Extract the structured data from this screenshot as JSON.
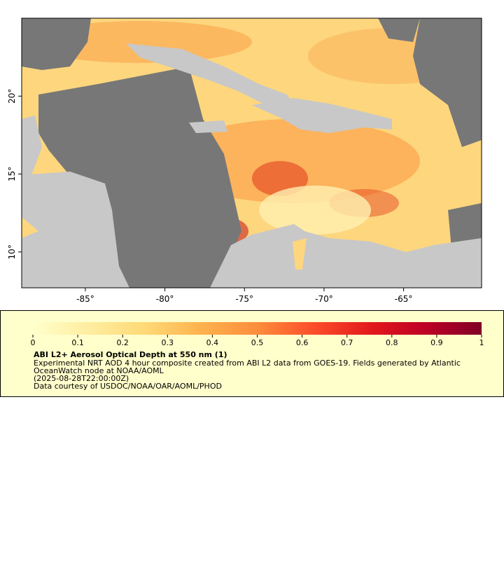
{
  "map": {
    "xlim": [
      -89,
      -60.1
    ],
    "ylim": [
      7.7,
      25
    ],
    "xticks": [
      {
        "value": -85,
        "label": "-85°"
      },
      {
        "value": -80,
        "label": "-80°"
      },
      {
        "value": -75,
        "label": "-75°"
      },
      {
        "value": -70,
        "label": "-70°"
      },
      {
        "value": -65,
        "label": "-65°"
      }
    ],
    "yticks": [
      {
        "value": 10,
        "label": "10°"
      },
      {
        "value": 15,
        "label": "15°"
      },
      {
        "value": 20,
        "label": "20°"
      }
    ]
  },
  "colorbar": {
    "range": [
      0,
      1
    ],
    "ticks": [
      0,
      0.1,
      0.2,
      0.3,
      0.4,
      0.5,
      0.6,
      0.7,
      0.8,
      0.9,
      1
    ],
    "colors": [
      "#ffffcc",
      "#ffeda0",
      "#fed976",
      "#feb24c",
      "#fd8d3c",
      "#fc4e2a",
      "#e31a1c",
      "#bd0026",
      "#800026"
    ]
  },
  "legend": {
    "title": "ABI L2+ Aerosol Optical Depth at 550 nm (1)",
    "lines": [
      "Experimental NRT AOD 4 hour composite created from ABI L2 data from GOES-19. Fields generated by Atlantic",
      "OceanWatch node at NOAA/AOML",
      "(2025-08-28T22:00:00Z)",
      "Data courtesy of USDOC/NOAA/OAR/AOML/PHOD"
    ]
  }
}
